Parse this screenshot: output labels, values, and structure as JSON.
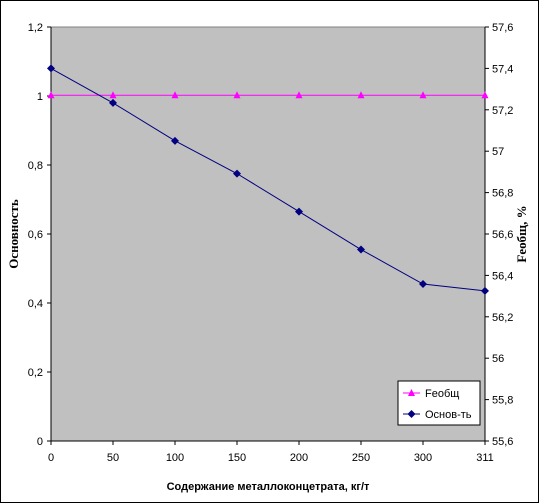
{
  "chart_data": {
    "type": "line",
    "title": "",
    "xlabel": "Содержание металлоконцетрата, кг/т",
    "ylabel_left": "Основность",
    "ylabel_right": "Feобщ, %",
    "categories": [
      "0",
      "50",
      "100",
      "150",
      "200",
      "250",
      "300",
      "311"
    ],
    "ylim_left": [
      0,
      1.2
    ],
    "ylim_right": [
      55.6,
      57.6
    ],
    "yticks_left": [
      "0",
      "0,2",
      "0,4",
      "0,6",
      "0,8",
      "1",
      "1,2"
    ],
    "yticks_right": [
      "55,6",
      "55,8",
      "56",
      "56,2",
      "56,4",
      "56,6",
      "56,8",
      "57",
      "57,2",
      "57,4",
      "57,6"
    ],
    "grid": false,
    "legend_position": "bottom-right",
    "series": [
      {
        "name": "Feобщ",
        "axis": "right",
        "color": "#ff00ff",
        "marker": "triangle",
        "values": [
          57.27,
          57.27,
          57.27,
          57.27,
          57.27,
          57.27,
          57.27,
          57.27
        ]
      },
      {
        "name": "Основ-ть",
        "axis": "left",
        "color": "#000080",
        "marker": "diamond",
        "values": [
          1.08,
          0.98,
          0.87,
          0.775,
          0.665,
          0.555,
          0.455,
          0.435
        ]
      }
    ],
    "plot_background": "#c0c0c0"
  }
}
